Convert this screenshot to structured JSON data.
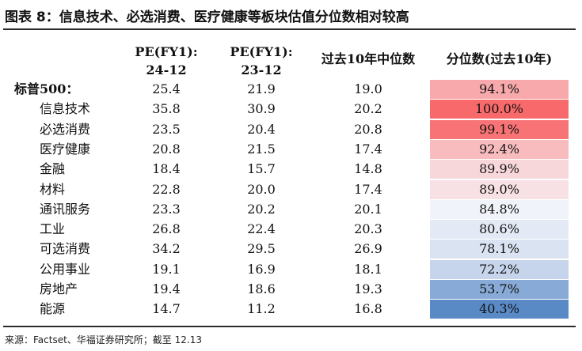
{
  "title": "图表 8：信息技术、必选消费、医疗健康等板块估值分位数相对较高",
  "source": "来源：Factset、华福证券研究所；截至 12.13",
  "colors": {
    "high": "#f8696b",
    "mid": "#f8f8fc",
    "low": "#5a8ac6"
  },
  "chart_data": {
    "type": "table",
    "columns": [
      "",
      "PE(FY1): 24-12",
      "PE(FY1): 23-12",
      "过去10年中位数",
      "分位数(过去10年)"
    ],
    "header_lines": [
      [
        "",
        ""
      ],
      [
        "PE(FY1):",
        "24-12"
      ],
      [
        "PE(FY1):",
        "23-12"
      ],
      [
        "过去10年中位数",
        ""
      ],
      [
        "分位数(过去10年)",
        ""
      ]
    ],
    "rows": [
      {
        "name": "标普500：",
        "pe_24": "25.4",
        "pe_23": "21.9",
        "median": "19.0",
        "pct_label": "94.1%",
        "pct": 94.1,
        "bold": true
      },
      {
        "name": "信息技术",
        "pe_24": "35.8",
        "pe_23": "30.9",
        "median": "20.2",
        "pct_label": "100.0%",
        "pct": 100.0
      },
      {
        "name": "必选消费",
        "pe_24": "23.5",
        "pe_23": "20.4",
        "median": "20.8",
        "pct_label": "99.1%",
        "pct": 99.1
      },
      {
        "name": "医疗健康",
        "pe_24": "20.8",
        "pe_23": "21.5",
        "median": "17.4",
        "pct_label": "92.4%",
        "pct": 92.4
      },
      {
        "name": "金融",
        "pe_24": "18.4",
        "pe_23": "15.7",
        "median": "14.8",
        "pct_label": "89.9%",
        "pct": 89.9
      },
      {
        "name": "材料",
        "pe_24": "22.8",
        "pe_23": "20.0",
        "median": "17.4",
        "pct_label": "89.0%",
        "pct": 89.0
      },
      {
        "name": "通讯服务",
        "pe_24": "23.3",
        "pe_23": "20.2",
        "median": "20.1",
        "pct_label": "84.8%",
        "pct": 84.8
      },
      {
        "name": "工业",
        "pe_24": "26.8",
        "pe_23": "22.4",
        "median": "20.3",
        "pct_label": "80.6%",
        "pct": 80.6
      },
      {
        "name": "可选消费",
        "pe_24": "34.2",
        "pe_23": "29.5",
        "median": "26.9",
        "pct_label": "78.1%",
        "pct": 78.1
      },
      {
        "name": "公用事业",
        "pe_24": "19.1",
        "pe_23": "16.9",
        "median": "18.1",
        "pct_label": "72.2%",
        "pct": 72.2
      },
      {
        "name": "房地产",
        "pe_24": "19.4",
        "pe_23": "18.6",
        "median": "19.3",
        "pct_label": "53.7%",
        "pct": 53.7
      },
      {
        "name": "能源",
        "pe_24": "14.7",
        "pe_23": "11.2",
        "median": "16.8",
        "pct_label": "40.3%",
        "pct": 40.3
      }
    ]
  }
}
